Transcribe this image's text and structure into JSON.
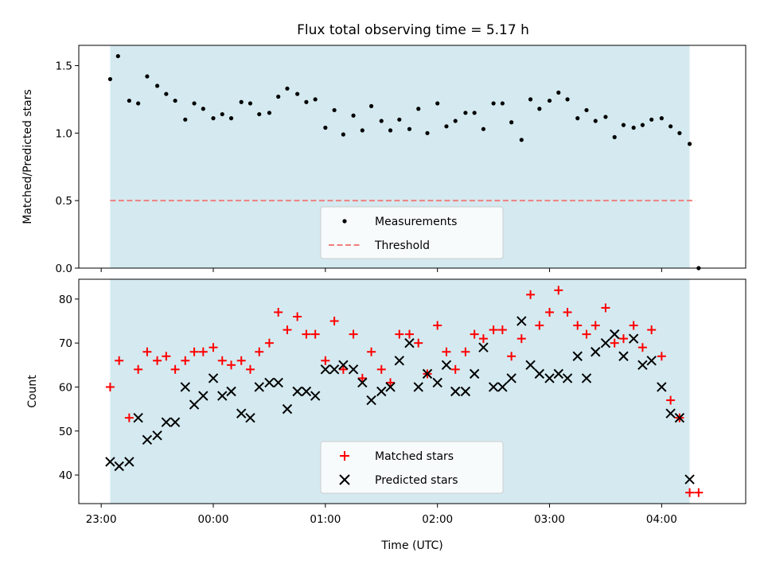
{
  "title": "Flux total observing time = 5.17 h",
  "colors": {
    "background_band": "#d4eaf0",
    "threshold": "#f08080",
    "measurement": "#000000",
    "matched": "#ff0000",
    "predicted": "#000000"
  },
  "chart_data": [
    {
      "type": "scatter",
      "panel": "top",
      "ylabel": "Matched/Predicted stars",
      "xlabel": "",
      "ylim": [
        0,
        1.65
      ],
      "yticks": [
        "0.0",
        "0.5",
        "1.0",
        "1.5"
      ],
      "ytick_values": [
        0,
        0.5,
        1.0,
        1.5
      ],
      "x_unit": "hours since 23:00 UTC",
      "xlim": [
        -0.2,
        5.75
      ],
      "shaded_span": [
        0.08,
        5.25
      ],
      "threshold": {
        "name": "Threshold",
        "value": 0.5,
        "x_range": [
          0.08,
          5.3
        ],
        "style": "dashed"
      },
      "legend": {
        "position": "lower center",
        "entries": [
          "Measurements",
          "Threshold"
        ]
      },
      "series": [
        {
          "name": "Measurements",
          "marker": "dot",
          "x": [
            0.08,
            0.15,
            0.25,
            0.33,
            0.41,
            0.5,
            0.58,
            0.66,
            0.75,
            0.83,
            0.91,
            1.0,
            1.08,
            1.16,
            1.25,
            1.33,
            1.41,
            1.5,
            1.58,
            1.66,
            1.75,
            1.83,
            1.91,
            2.0,
            2.08,
            2.16,
            2.25,
            2.33,
            2.41,
            2.5,
            2.58,
            2.66,
            2.75,
            2.83,
            2.91,
            3.0,
            3.08,
            3.16,
            3.25,
            3.33,
            3.41,
            3.5,
            3.58,
            3.66,
            3.75,
            3.83,
            3.91,
            4.0,
            4.08,
            4.16,
            4.25,
            4.33,
            4.41,
            4.5,
            4.58,
            4.66,
            4.75,
            4.83,
            4.91,
            5.0,
            5.08,
            5.16,
            5.25,
            5.33
          ],
          "values": [
            1.4,
            1.57,
            1.24,
            1.22,
            1.42,
            1.35,
            1.29,
            1.24,
            1.1,
            1.22,
            1.18,
            1.11,
            1.14,
            1.11,
            1.23,
            1.22,
            1.14,
            1.15,
            1.27,
            1.33,
            1.29,
            1.23,
            1.25,
            1.04,
            1.17,
            0.99,
            1.13,
            1.02,
            1.2,
            1.09,
            1.02,
            1.1,
            1.03,
            1.18,
            1.0,
            1.22,
            1.05,
            1.09,
            1.15,
            1.15,
            1.03,
            1.22,
            1.22,
            1.08,
            0.95,
            1.25,
            1.18,
            1.24,
            1.3,
            1.25,
            1.11,
            1.17,
            1.09,
            1.12,
            0.97,
            1.06,
            1.04,
            1.06,
            1.1,
            1.11,
            1.05,
            1.0,
            0.92,
            0.0
          ]
        }
      ]
    },
    {
      "type": "scatter",
      "panel": "bottom",
      "xlabel": "Time (UTC)",
      "ylabel": "Count",
      "ylim": [
        33.5,
        84.5
      ],
      "yticks": [
        "40",
        "50",
        "60",
        "70",
        "80"
      ],
      "ytick_values": [
        40,
        50,
        60,
        70,
        80
      ],
      "xticks": [
        "23:00",
        "00:00",
        "01:00",
        "02:00",
        "03:00",
        "04:00"
      ],
      "xtick_values": [
        0,
        1,
        2,
        3,
        4,
        5
      ],
      "x_unit": "hours since 23:00 UTC",
      "xlim": [
        -0.2,
        5.75
      ],
      "shaded_span": [
        0.08,
        5.25
      ],
      "legend": {
        "position": "lower center",
        "entries": [
          "Matched stars",
          "Predicted stars"
        ]
      },
      "series": [
        {
          "name": "Matched stars",
          "marker": "plus",
          "x": [
            0.08,
            0.16,
            0.25,
            0.33,
            0.41,
            0.5,
            0.58,
            0.66,
            0.75,
            0.83,
            0.91,
            1.0,
            1.08,
            1.16,
            1.25,
            1.33,
            1.41,
            1.5,
            1.58,
            1.66,
            1.75,
            1.83,
            1.91,
            2.0,
            2.08,
            2.16,
            2.25,
            2.33,
            2.41,
            2.5,
            2.58,
            2.66,
            2.75,
            2.83,
            2.91,
            3.0,
            3.08,
            3.16,
            3.25,
            3.33,
            3.41,
            3.5,
            3.58,
            3.66,
            3.75,
            3.83,
            3.91,
            4.0,
            4.08,
            4.16,
            4.25,
            4.33,
            4.41,
            4.5,
            4.58,
            4.66,
            4.75,
            4.83,
            4.91,
            5.0,
            5.08,
            5.16,
            5.25,
            5.33
          ],
          "values": [
            60,
            66,
            53,
            64,
            68,
            66,
            67,
            64,
            66,
            68,
            68,
            69,
            66,
            65,
            66,
            64,
            68,
            70,
            77,
            73,
            76,
            72,
            72,
            66,
            75,
            64,
            72,
            62,
            68,
            64,
            61,
            72,
            72,
            70,
            63,
            74,
            68,
            64,
            68,
            72,
            71,
            73,
            73,
            67,
            71,
            81,
            74,
            77,
            82,
            77,
            74,
            72,
            74,
            78,
            70,
            71,
            74,
            69,
            73,
            67,
            57,
            53,
            36,
            36
          ]
        },
        {
          "name": "Predicted stars",
          "marker": "x",
          "x": [
            0.08,
            0.16,
            0.25,
            0.33,
            0.41,
            0.5,
            0.58,
            0.66,
            0.75,
            0.83,
            0.91,
            1.0,
            1.08,
            1.16,
            1.25,
            1.33,
            1.41,
            1.5,
            1.58,
            1.66,
            1.75,
            1.83,
            1.91,
            2.0,
            2.08,
            2.16,
            2.25,
            2.33,
            2.41,
            2.5,
            2.58,
            2.66,
            2.75,
            2.83,
            2.91,
            3.0,
            3.08,
            3.16,
            3.25,
            3.33,
            3.41,
            3.5,
            3.58,
            3.66,
            3.75,
            3.83,
            3.91,
            4.0,
            4.08,
            4.16,
            4.25,
            4.33,
            4.41,
            4.5,
            4.58,
            4.66,
            4.75,
            4.83,
            4.91,
            5.0,
            5.08,
            5.16,
            5.25
          ],
          "values": [
            43,
            42,
            43,
            53,
            48,
            49,
            52,
            52,
            60,
            56,
            58,
            62,
            58,
            59,
            54,
            53,
            60,
            61,
            61,
            55,
            59,
            59,
            58,
            64,
            64,
            65,
            64,
            61,
            57,
            59,
            60,
            66,
            70,
            60,
            63,
            61,
            65,
            59,
            59,
            63,
            69,
            60,
            60,
            62,
            75,
            65,
            63,
            62,
            63,
            62,
            67,
            62,
            68,
            70,
            72,
            67,
            71,
            65,
            66,
            60,
            54,
            53,
            39
          ]
        }
      ]
    }
  ]
}
